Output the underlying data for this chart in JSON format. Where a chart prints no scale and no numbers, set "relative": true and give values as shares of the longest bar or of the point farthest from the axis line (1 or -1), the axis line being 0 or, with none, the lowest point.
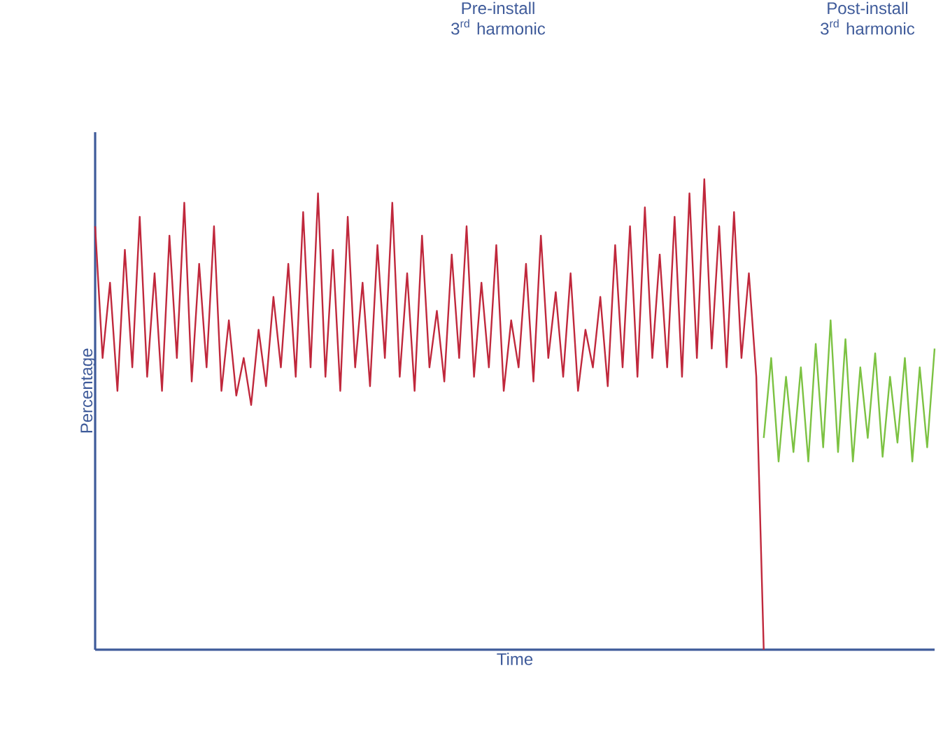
{
  "chart_data": {
    "type": "line",
    "relative": true,
    "xlabel": "Time",
    "ylabel": "Percentage",
    "annotations": [
      "Pre-install 3$^{rd}$ harmonic",
      "Post-install 3$^{rd}$ harmonic"
    ],
    "categories": [
      null,
      null,
      null,
      null,
      null,
      null,
      null,
      null,
      null,
      null,
      null,
      null,
      null,
      null,
      null,
      null,
      null,
      null,
      null,
      null,
      null,
      null,
      null,
      null,
      null,
      null,
      null,
      null,
      null,
      null,
      null,
      null,
      null,
      null,
      null,
      null,
      null,
      null,
      null,
      null,
      null,
      null,
      null,
      null,
      null,
      null,
      null,
      null,
      null,
      null,
      null,
      null,
      null,
      null,
      null,
      null,
      null,
      null,
      null,
      null,
      null,
      null,
      null,
      null,
      null,
      null,
      null,
      null,
      null,
      null,
      null,
      null,
      null,
      null,
      null,
      null,
      null,
      null,
      null,
      null,
      null,
      null,
      null,
      null,
      null,
      null,
      null,
      null,
      null,
      null,
      null,
      null,
      null,
      null,
      null,
      null,
      null,
      null,
      null,
      null,
      null,
      null,
      null,
      null,
      null,
      null,
      null,
      null,
      null,
      null,
      null,
      null,
      null,
      null
    ],
    "series": [
      {
        "color": "#c0283c",
        "values": [
          0.9,
          0.62,
          0.78,
          0.55,
          0.85,
          0.6,
          0.92,
          0.58,
          0.8,
          0.55,
          0.88,
          0.62,
          0.95,
          0.57,
          0.82,
          0.6,
          0.9,
          0.55,
          0.7,
          0.54,
          0.62,
          0.52,
          0.68,
          0.56,
          0.75,
          0.6,
          0.82,
          0.58,
          0.93,
          0.6,
          0.97,
          0.58,
          0.85,
          0.55,
          0.92,
          0.6,
          0.78,
          0.56,
          0.86,
          0.62,
          0.95,
          0.58,
          0.8,
          0.55,
          0.88,
          0.6,
          0.72,
          0.57,
          0.84,
          0.62,
          0.9,
          0.58,
          0.78,
          0.6,
          0.86,
          0.55,
          0.7,
          0.6,
          0.82,
          0.57,
          0.88,
          0.62,
          0.76,
          0.58,
          0.8,
          0.55,
          0.68,
          0.6,
          0.75,
          0.56,
          0.86,
          0.6,
          0.9,
          0.58,
          0.94,
          0.62,
          0.84,
          0.6,
          0.92,
          0.58,
          0.97,
          0.62,
          1.0,
          0.64,
          0.9,
          0.6,
          0.93,
          0.62,
          0.8,
          0.58,
          0,
          null,
          null,
          null,
          null,
          null,
          null,
          null,
          null,
          null,
          null,
          null,
          null,
          null,
          null,
          null,
          null,
          null,
          null,
          null,
          null,
          null,
          null,
          null
        ]
      },
      {
        "color": "#7cc242",
        "values": [
          null,
          null,
          null,
          null,
          null,
          null,
          null,
          null,
          null,
          null,
          null,
          null,
          null,
          null,
          null,
          null,
          null,
          null,
          null,
          null,
          null,
          null,
          null,
          null,
          null,
          null,
          null,
          null,
          null,
          null,
          null,
          null,
          null,
          null,
          null,
          null,
          null,
          null,
          null,
          null,
          null,
          null,
          null,
          null,
          null,
          null,
          null,
          null,
          null,
          null,
          null,
          null,
          null,
          null,
          null,
          null,
          null,
          null,
          null,
          null,
          null,
          null,
          null,
          null,
          null,
          null,
          null,
          null,
          null,
          null,
          null,
          null,
          null,
          null,
          null,
          null,
          null,
          null,
          null,
          null,
          null,
          null,
          null,
          null,
          null,
          null,
          null,
          null,
          null,
          null,
          0.45,
          0.62,
          0.4,
          0.58,
          0.42,
          0.6,
          0.4,
          0.65,
          0.43,
          0.7,
          0.42,
          0.66,
          0.4,
          0.6,
          0.45,
          0.63,
          0.41,
          0.58,
          0.44,
          0.62,
          0.4,
          0.6,
          0.43,
          0.64
        ]
      }
    ]
  }
}
